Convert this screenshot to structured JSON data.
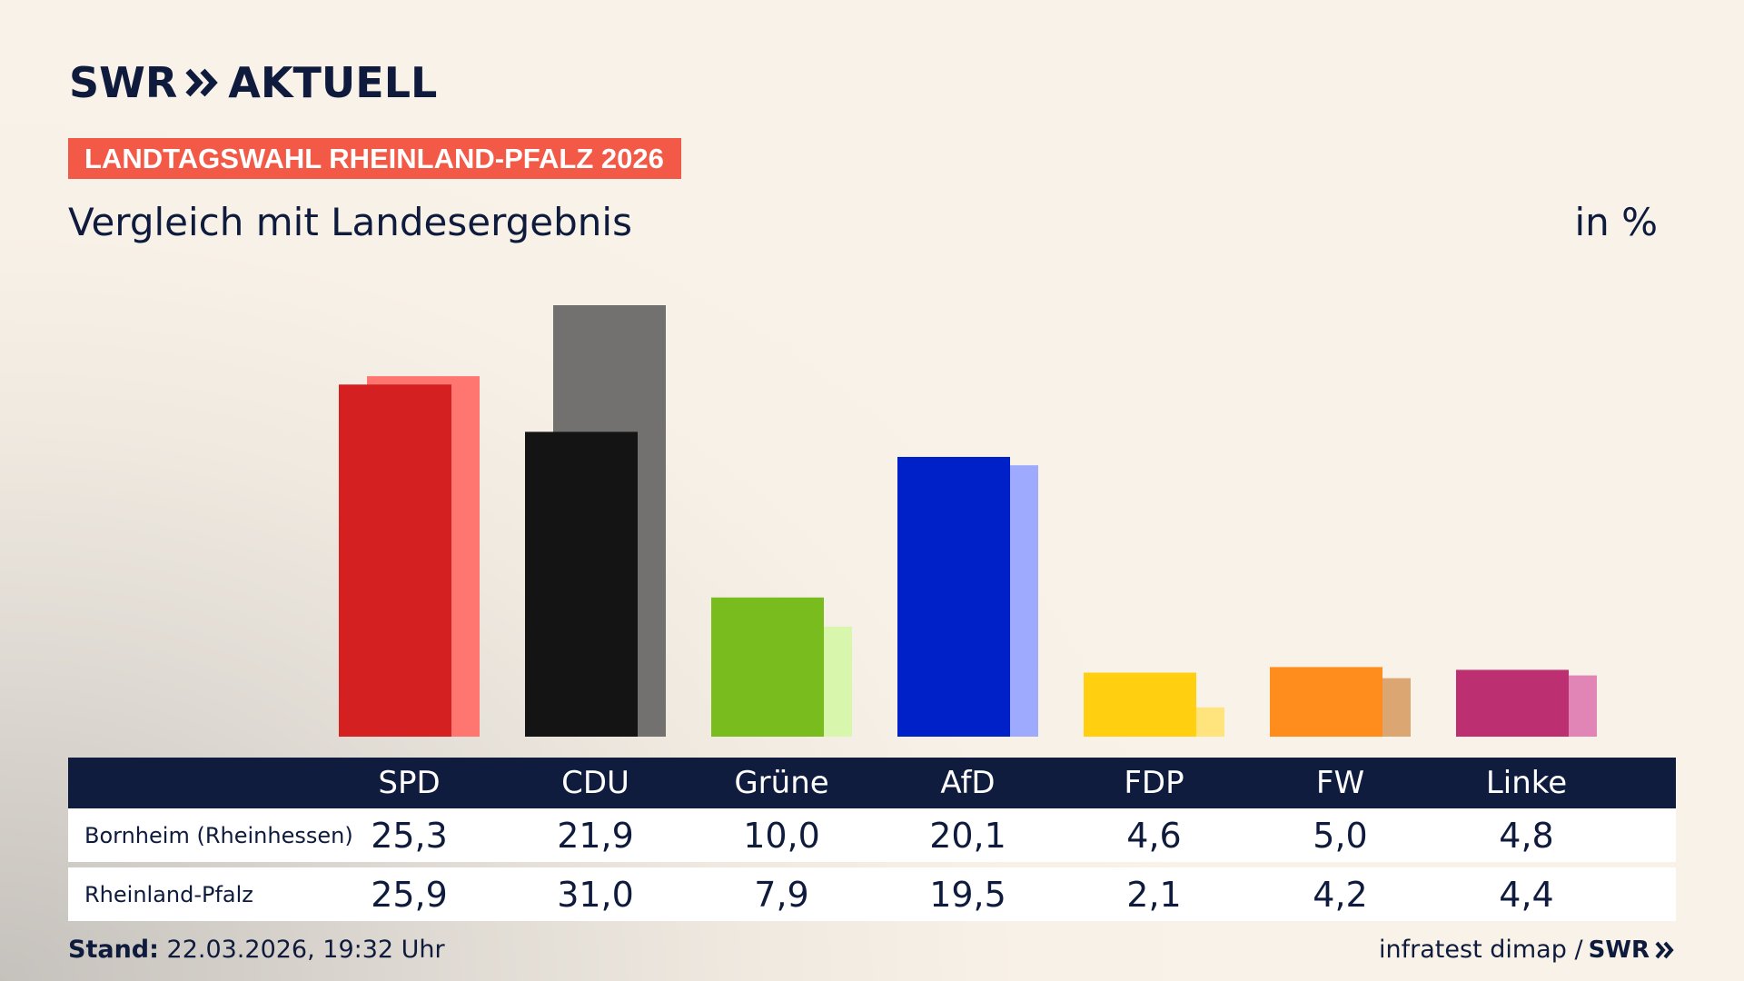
{
  "header": {
    "logo_text": "SWR",
    "logo_suffix": "AKTUELL",
    "banner": "LANDTAGSWAHL RHEINLAND-PFALZ 2026",
    "subtitle": "Vergleich mit Landesergebnis",
    "unit": "in %"
  },
  "chart_data": {
    "type": "bar",
    "categories": [
      "SPD",
      "CDU",
      "Grüne",
      "AfD",
      "FDP",
      "FW",
      "Linke"
    ],
    "series": [
      {
        "name": "Bornheim (Rheinhessen)",
        "values": [
          25.3,
          21.9,
          10.0,
          20.1,
          4.6,
          5.0,
          4.8
        ]
      },
      {
        "name": "Rheinland-Pfalz",
        "values": [
          25.9,
          31.0,
          7.9,
          19.5,
          2.1,
          4.2,
          4.4
        ]
      }
    ],
    "display_values": [
      [
        "25,3",
        "21,9",
        "10,0",
        "20,1",
        "4,6",
        "5,0",
        "4,8"
      ],
      [
        "25,9",
        "31,0",
        "7,9",
        "19,5",
        "2,1",
        "4,2",
        "4,4"
      ]
    ],
    "colors": {
      "primary": [
        "#d42020",
        "#141414",
        "#79bc1d",
        "#0020c8",
        "#ffcf10",
        "#ff8d1e",
        "#bc2f70"
      ],
      "secondary": [
        "#ff7570",
        "#73716f",
        "#d9f7ac",
        "#9eaafe",
        "#ffe37c",
        "#dba672",
        "#e085b6"
      ]
    },
    "ylim": [
      0,
      31.0
    ],
    "grid": false,
    "legend": "table-below"
  },
  "table": {
    "rows": [
      {
        "label": "Bornheim (Rheinhessen)"
      },
      {
        "label": "Rheinland-Pfalz"
      }
    ]
  },
  "footer": {
    "stand_label": "Stand:",
    "stand_value": "22.03.2026, 19:32 Uhr",
    "source": "infratest dimap /",
    "brand": "SWR"
  }
}
